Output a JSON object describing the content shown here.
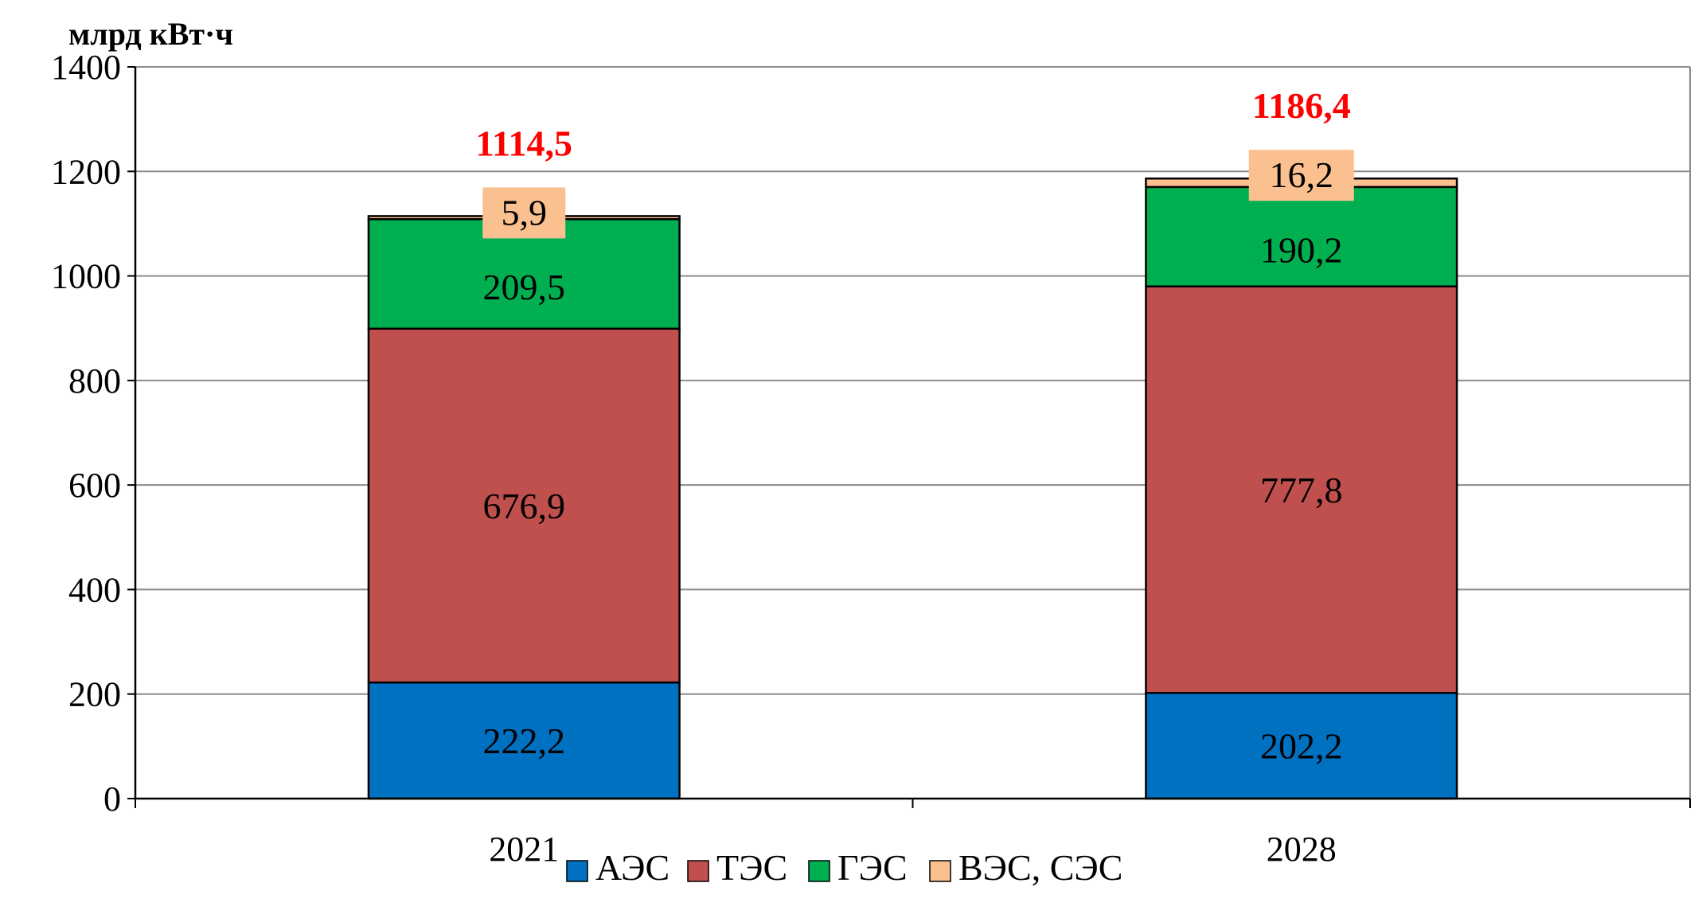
{
  "chart_data": {
    "type": "bar",
    "stacked": true,
    "unit_label": "млрд кВт·ч",
    "categories": [
      "2021",
      "2028"
    ],
    "ylim": [
      0,
      1400
    ],
    "yticks": [
      "0",
      "200",
      "400",
      "600",
      "800",
      "1000",
      "1200",
      "1400"
    ],
    "grid": true,
    "legend_position": "bottom",
    "series": [
      {
        "name": "АЭС",
        "values": [
          222.2,
          202.2
        ],
        "labels": [
          "222,2",
          "202,2"
        ],
        "color": "#0070C0"
      },
      {
        "name": "ТЭС",
        "values": [
          676.9,
          777.8
        ],
        "labels": [
          "676,9",
          "777,8"
        ],
        "color": "#C0504D"
      },
      {
        "name": "ГЭС",
        "values": [
          209.5,
          190.2
        ],
        "labels": [
          "209,5",
          "190,2"
        ],
        "color": "#00B050"
      },
      {
        "name": "ВЭС, СЭС",
        "values": [
          5.9,
          16.2
        ],
        "labels": [
          "5,9",
          "16,2"
        ],
        "color": "#FAC090"
      }
    ],
    "totals": [
      "1114,5",
      "1186,4"
    ],
    "total_color": "#FF0000"
  }
}
